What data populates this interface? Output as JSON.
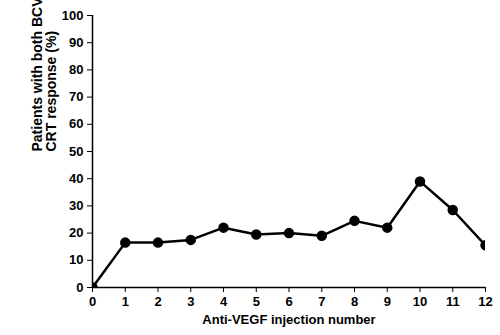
{
  "chart_data": {
    "type": "line",
    "x_label": "Anti-VEGF injection number",
    "y_label": "Patients with both BCVA and CRT response (%)",
    "x": [
      0,
      1,
      2,
      3,
      4,
      5,
      6,
      7,
      8,
      9,
      10,
      11,
      12
    ],
    "values": [
      0,
      16.5,
      16.5,
      17.5,
      22,
      19.5,
      20,
      19,
      24.5,
      22,
      39,
      28.5,
      15.5
    ],
    "color": "#000000",
    "marker": "circle",
    "line_style": "solid",
    "xlim": [
      0,
      12
    ],
    "xticks": [
      0,
      1,
      2,
      3,
      4,
      5,
      6,
      7,
      8,
      9,
      10,
      11,
      12
    ],
    "ylim": [
      0,
      100
    ],
    "yticks": [
      0,
      10,
      20,
      30,
      40,
      50,
      60,
      70,
      80,
      90,
      100
    ],
    "grid": false
  }
}
